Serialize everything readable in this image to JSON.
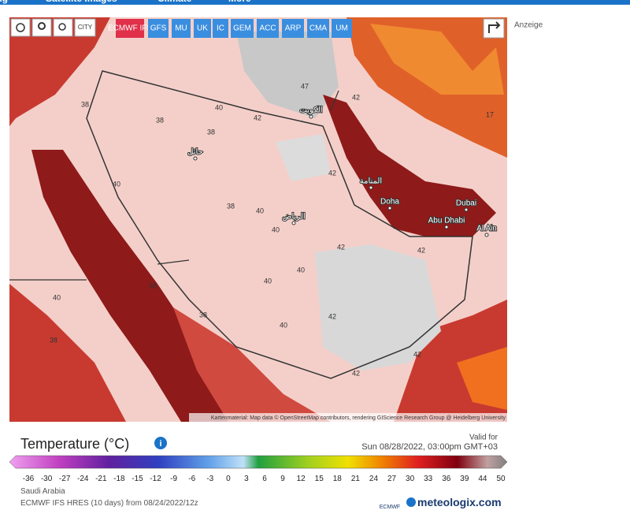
{
  "nav": [
    "ing",
    "Satellite Images",
    "Climate",
    "More"
  ],
  "ad_label": "Anzeige",
  "map": {
    "toolbar": {
      "city": "CITY",
      "models": [
        "ECMWF IFS",
        "GFS",
        "MU",
        "UK",
        "IC",
        "GEM",
        "ACC",
        "ARP",
        "CMA",
        "UM"
      ]
    },
    "isotherm_labels": [
      40,
      42,
      38,
      38,
      38,
      40,
      38,
      40,
      40,
      40,
      42,
      40,
      38,
      40,
      42,
      42,
      42,
      42,
      42,
      47,
      42,
      40,
      38,
      38,
      17
    ],
    "places": [
      "Doha",
      "Dubai",
      "Abu Dhabi",
      "Al Ain",
      "الرياض",
      "حائل",
      "المنامة",
      "الكويت"
    ],
    "attribution": "Kartenmaterial: Map data © OpenStreetMap contributors, rendering GIScience Research Group @ Heidelberg University"
  },
  "legend": {
    "title": "Temperature (°C)",
    "valid_for": "Valid for",
    "valid_time": "Sun 08/28/2022, 03:00pm GMT+03",
    "ticks": [
      -36,
      -30,
      -27,
      -24,
      -21,
      -18,
      -15,
      -12,
      -9,
      -6,
      -3,
      0,
      3,
      6,
      9,
      12,
      15,
      18,
      21,
      24,
      27,
      30,
      33,
      36,
      39,
      44,
      50
    ],
    "region": "Saudi Arabia",
    "model_run": "ECMWF IFS HRES (10 days) from 08/24/2022/12z",
    "brand": "meteologix.com",
    "brand_sub": "ECMWF"
  }
}
